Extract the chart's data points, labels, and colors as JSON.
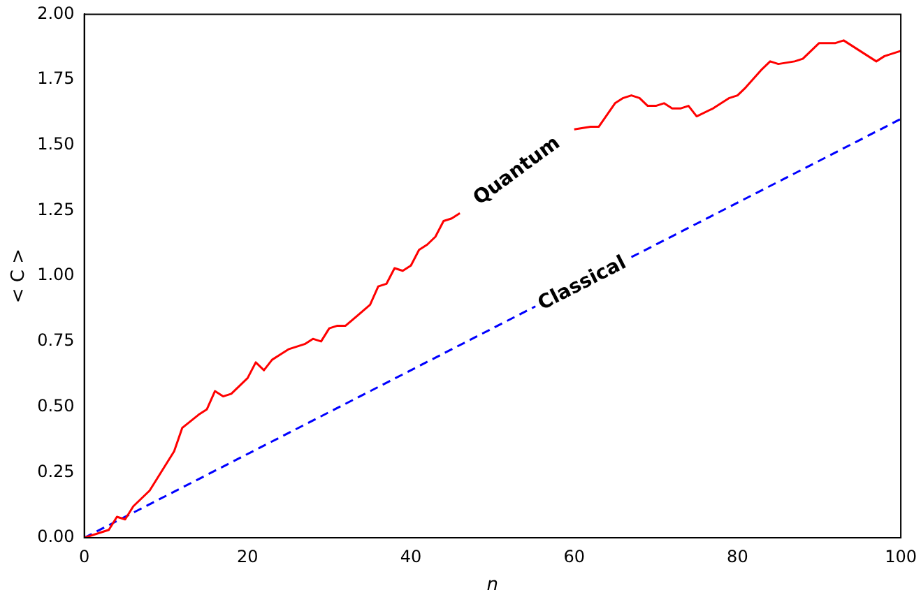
{
  "chart_data": {
    "type": "line",
    "xlabel": "n",
    "ylabel": "< C >",
    "xlim": [
      0,
      100
    ],
    "xticks": [
      0,
      20,
      40,
      60,
      80,
      100
    ],
    "ylim": [
      0,
      2
    ],
    "yticks": [
      {
        "value": 0,
        "label": "0.00"
      },
      {
        "value": 0.25,
        "label": "0.25"
      },
      {
        "value": 0.5,
        "label": "0.50"
      },
      {
        "value": 0.75,
        "label": "0.75"
      },
      {
        "value": 1,
        "label": "1.00"
      },
      {
        "value": 1.25,
        "label": "1.25"
      },
      {
        "value": 1.5,
        "label": "1.50"
      },
      {
        "value": 1.75,
        "label": "1.75"
      },
      {
        "value": 2,
        "label": "2.00"
      }
    ],
    "grid": false,
    "legend": false,
    "marker": "none",
    "series": [
      {
        "color": "#ff0000",
        "line_style": "solid",
        "x": [
          0,
          2,
          3,
          4,
          5,
          6,
          8,
          10,
          11,
          12,
          14,
          15,
          16,
          17,
          18,
          20,
          21,
          22,
          23,
          25,
          27,
          28,
          29,
          30,
          31,
          32,
          35,
          36,
          37,
          38,
          39,
          40,
          41,
          42,
          43,
          44,
          45,
          46,
          48,
          50,
          55,
          58,
          60,
          62,
          63,
          65,
          66,
          67,
          68,
          69,
          70,
          71,
          72,
          73,
          74,
          75,
          77,
          79,
          80,
          81,
          83,
          84,
          85,
          87,
          88,
          90,
          92,
          93,
          95,
          96,
          97,
          98,
          100
        ],
        "values": [
          0,
          0.02,
          0.03,
          0.08,
          0.07,
          0.12,
          0.18,
          0.28,
          0.33,
          0.42,
          0.47,
          0.49,
          0.56,
          0.54,
          0.55,
          0.61,
          0.67,
          0.64,
          0.68,
          0.72,
          0.74,
          0.76,
          0.75,
          0.8,
          0.81,
          0.81,
          0.89,
          0.96,
          0.97,
          1.03,
          1.02,
          1.04,
          1.1,
          1.12,
          1.15,
          1.21,
          1.22,
          1.24,
          null,
          null,
          null,
          null,
          1.56,
          1.57,
          1.57,
          1.66,
          1.68,
          1.69,
          1.68,
          1.65,
          1.65,
          1.66,
          1.64,
          1.64,
          1.65,
          1.61,
          1.64,
          1.68,
          1.69,
          1.72,
          1.79,
          1.82,
          1.81,
          1.82,
          1.83,
          1.89,
          1.89,
          1.9,
          1.86,
          1.84,
          1.82,
          1.84,
          1.86
        ]
      },
      {
        "color": "#0000ff",
        "line_style": "dashed",
        "x": [
          0,
          100
        ],
        "values": [
          0,
          1.6
        ]
      }
    ],
    "annotations": [
      "Quantum",
      {
        "text": "Classical",
        "x": 61,
        "y": 0.97
      }
    ]
  }
}
